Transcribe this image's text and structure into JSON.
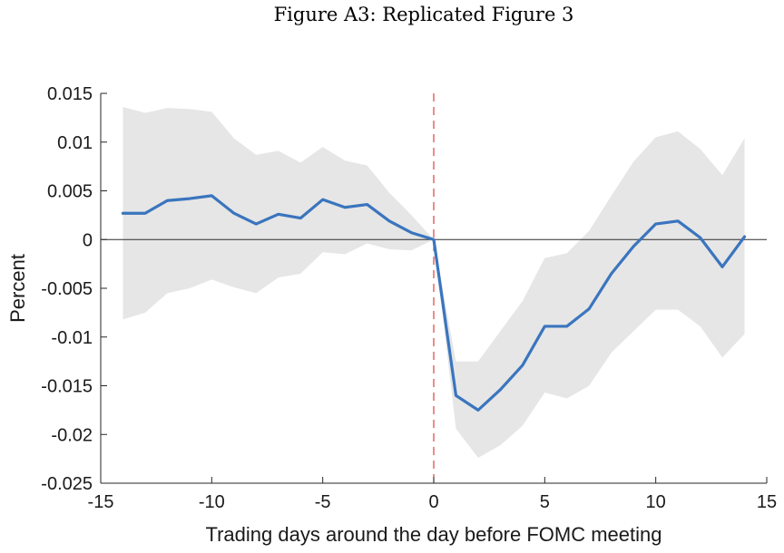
{
  "figure_title": "Figure A3: Replicated Figure 3",
  "chart_data": {
    "type": "line",
    "xlabel": "Trading days around the day before FOMC meeting",
    "ylabel": "Percent",
    "xlim": [
      -15,
      15
    ],
    "ylim": [
      -0.025,
      0.015
    ],
    "xticks": [
      -15,
      -10,
      -5,
      0,
      5,
      10,
      15
    ],
    "xtick_labels": [
      "-15",
      "-10",
      "-5",
      "0",
      "5",
      "10",
      "15"
    ],
    "yticks": [
      0.015,
      0.01,
      0.005,
      0,
      -0.005,
      -0.01,
      -0.015,
      -0.02,
      -0.025
    ],
    "ytick_labels": [
      "0.015",
      "0.01",
      "0.005",
      "0",
      "-0.005",
      "-0.01",
      "-0.015",
      "-0.02",
      "-0.025"
    ],
    "x": [
      -14,
      -13,
      -12,
      -11,
      -10,
      -9,
      -8,
      -7,
      -6,
      -5,
      -4,
      -3,
      -2,
      -1,
      0,
      1,
      2,
      3,
      4,
      5,
      6,
      7,
      8,
      9,
      10,
      11,
      12,
      13,
      14
    ],
    "series": [
      {
        "values": [
          0.0027,
          0.0027,
          0.004,
          0.0042,
          0.0045,
          0.0027,
          0.0016,
          0.0026,
          0.0022,
          0.0041,
          0.0033,
          0.0036,
          0.0019,
          0.0007,
          0.0,
          -0.016,
          -0.0175,
          -0.0154,
          -0.0129,
          -0.0089,
          -0.0089,
          -0.0071,
          -0.0035,
          -0.0007,
          0.0016,
          0.0019,
          0.0002,
          -0.0028,
          0.0003
        ],
        "color": "#3a75be"
      }
    ],
    "band": {
      "upper": [
        0.0136,
        0.013,
        0.0135,
        0.0134,
        0.0131,
        0.0104,
        0.0087,
        0.0091,
        0.0079,
        0.0095,
        0.0081,
        0.0076,
        0.0048,
        0.0025,
        0.0,
        -0.0125,
        -0.0125,
        -0.0094,
        -0.0063,
        -0.0019,
        -0.0014,
        0.0009,
        0.0045,
        0.008,
        0.0105,
        0.0111,
        0.0093,
        0.0066,
        0.0104
      ],
      "lower": [
        -0.0082,
        -0.0075,
        -0.0055,
        -0.005,
        -0.0041,
        -0.0049,
        -0.0055,
        -0.0039,
        -0.0035,
        -0.0013,
        -0.0015,
        -0.0004,
        -0.001,
        -0.0011,
        0.0,
        -0.0194,
        -0.0224,
        -0.0211,
        -0.0191,
        -0.0157,
        -0.0163,
        -0.015,
        -0.0116,
        -0.0094,
        -0.0072,
        -0.0072,
        -0.0089,
        -0.0121,
        -0.0097
      ],
      "color": "#e6e6e6"
    },
    "zero_line": {
      "y": 0,
      "color": "#2b2b2b"
    },
    "vline": {
      "x": 0,
      "color": "#e0403a",
      "style": "dashed"
    },
    "grid": false,
    "legend": "none"
  }
}
